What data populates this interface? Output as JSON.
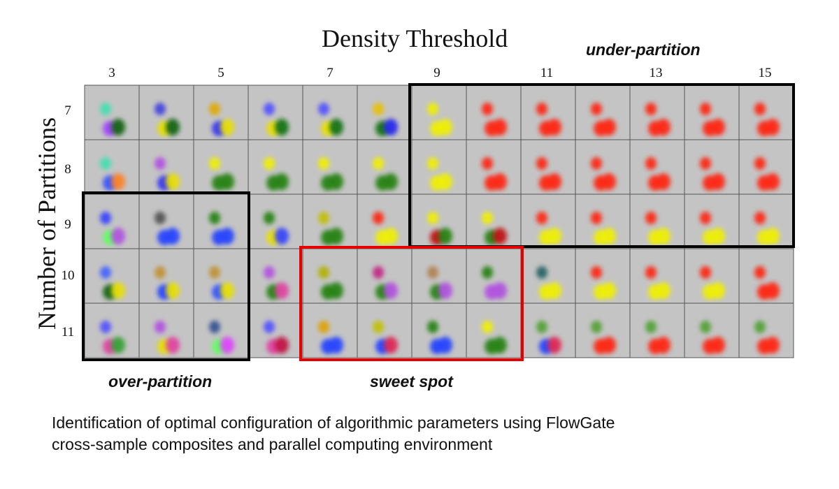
{
  "figure": {
    "x_axis_title": "Density Threshold",
    "y_axis_title": "Number of Partitions",
    "x_ticks": [
      "3",
      "5",
      "7",
      "9",
      "11",
      "13",
      "15"
    ],
    "y_ticks": [
      "7",
      "8",
      "9",
      "10",
      "11"
    ],
    "labels": {
      "under_partition": "under-partition",
      "over_partition": "over-partition",
      "sweet_spot": "sweet spot"
    },
    "caption_lines": [
      "Identification of optimal configuration of algorithmic parameters using FlowGate",
      "cross-sample composites and parallel computing environment"
    ],
    "region_colors": {
      "under_partition": "#000000",
      "over_partition": "#000000",
      "sweet_spot": "#e60000",
      "cell_background": "#c4c4c4"
    },
    "grid": {
      "columns": 13,
      "rows": 5,
      "cells": [
        [
          [
            "#40e0b0",
            "#a040ff",
            "#106010"
          ],
          [
            "#4040e0",
            "#e8e000",
            "#106010"
          ],
          [
            "#e0a800",
            "#3030f0",
            "#e8e000"
          ],
          [
            "#5050ff",
            "#e8e000",
            "#107010"
          ],
          [
            "#5050ff",
            "#e8e000",
            "#107010"
          ],
          [
            "#e8c000",
            "#107010",
            "#2020f0"
          ],
          [
            "#f0f000",
            "#f0f000",
            "#f0f000"
          ],
          [
            "#ff2010",
            "#ff2010",
            "#ff2010"
          ],
          [
            "#ff2010",
            "#ff2010",
            "#ff2010"
          ],
          [
            "#ff2010",
            "#ff2010",
            "#ff2010"
          ],
          [
            "#ff2010",
            "#ff2010",
            "#ff2010"
          ],
          [
            "#ff2010",
            "#ff2010",
            "#ff2010"
          ],
          [
            "#ff2010",
            "#ff2010",
            "#ff2010"
          ]
        ],
        [
          [
            "#40e0b0",
            "#3050ff",
            "#ff8020"
          ],
          [
            "#b050e0",
            "#3030f0",
            "#e8e000"
          ],
          [
            "#f0f000",
            "#208010",
            "#208010"
          ],
          [
            "#f0f000",
            "#208010",
            "#208010"
          ],
          [
            "#f0f000",
            "#208010",
            "#208010"
          ],
          [
            "#f0f000",
            "#208010",
            "#208010"
          ],
          [
            "#f0f000",
            "#f0f000",
            "#f0f000"
          ],
          [
            "#ff2010",
            "#ff2010",
            "#ff2010"
          ],
          [
            "#ff2010",
            "#ff2010",
            "#ff2010"
          ],
          [
            "#ff2010",
            "#ff2010",
            "#ff2010"
          ],
          [
            "#ff2010",
            "#ff2010",
            "#ff2010"
          ],
          [
            "#ff2010",
            "#ff2010",
            "#ff2010"
          ],
          [
            "#ff2010",
            "#ff2010",
            "#ff2010"
          ]
        ],
        [
          [
            "#3040ff",
            "#60ff60",
            "#b050e0"
          ],
          [
            "#505050",
            "#2040ff",
            "#2040ff"
          ],
          [
            "#208010",
            "#2040ff",
            "#2040ff"
          ],
          [
            "#208010",
            "#e8e000",
            "#3040ff"
          ],
          [
            "#c0c000",
            "#208010",
            "#208010"
          ],
          [
            "#ff2010",
            "#f0f000",
            "#f0f000"
          ],
          [
            "#f0f000",
            "#c01010",
            "#208010"
          ],
          [
            "#f0f000",
            "#208010",
            "#c01010"
          ],
          [
            "#ff2010",
            "#f0f000",
            "#f0f000"
          ],
          [
            "#ff2010",
            "#f0f000",
            "#f0f000"
          ],
          [
            "#ff2010",
            "#f0f000",
            "#f0f000"
          ],
          [
            "#ff2010",
            "#f0f000",
            "#f0f000"
          ],
          [
            "#ff2010",
            "#f0f000",
            "#f0f000"
          ]
        ],
        [
          [
            "#4060ff",
            "#106010",
            "#e8e000"
          ],
          [
            "#c09030",
            "#2040ff",
            "#e8e000"
          ],
          [
            "#c09030",
            "#3050ff",
            "#e8e000"
          ],
          [
            "#b050e0",
            "#208010",
            "#e040a0"
          ],
          [
            "#b0b000",
            "#208010",
            "#208010"
          ],
          [
            "#c02080",
            "#208010",
            "#b050e0"
          ],
          [
            "#b08050",
            "#208010",
            "#b050e0"
          ],
          [
            "#208010",
            "#b050e0",
            "#b050e0"
          ],
          [
            "#206060",
            "#f0f000",
            "#f0f000"
          ],
          [
            "#ff2010",
            "#f0f000",
            "#f0f000"
          ],
          [
            "#ff2010",
            "#f0f000",
            "#f0f000"
          ],
          [
            "#ff2010",
            "#f0f000",
            "#f0f000"
          ],
          [
            "#ff2010",
            "#ff2010",
            "#ff2010"
          ]
        ],
        [
          [
            "#5050ff",
            "#e040a0",
            "#30a030"
          ],
          [
            "#b050e0",
            "#e8e000",
            "#e040a0"
          ],
          [
            "#305090",
            "#60ff60",
            "#e040ff"
          ],
          [
            "#5050ff",
            "#e040a0",
            "#c01040"
          ],
          [
            "#e0a000",
            "#2040ff",
            "#2040ff"
          ],
          [
            "#c0c000",
            "#2040ff",
            "#e02050"
          ],
          [
            "#208010",
            "#2040ff",
            "#2040ff"
          ],
          [
            "#f0f000",
            "#208010",
            "#208010"
          ],
          [
            "#50a030",
            "#2040ff",
            "#e02050"
          ],
          [
            "#50a030",
            "#ff2010",
            "#ff2010"
          ],
          [
            "#50a030",
            "#ff2010",
            "#ff2010"
          ],
          [
            "#50a030",
            "#ff2010",
            "#ff2010"
          ],
          [
            "#50a030",
            "#ff2010",
            "#ff2010"
          ]
        ]
      ]
    }
  }
}
